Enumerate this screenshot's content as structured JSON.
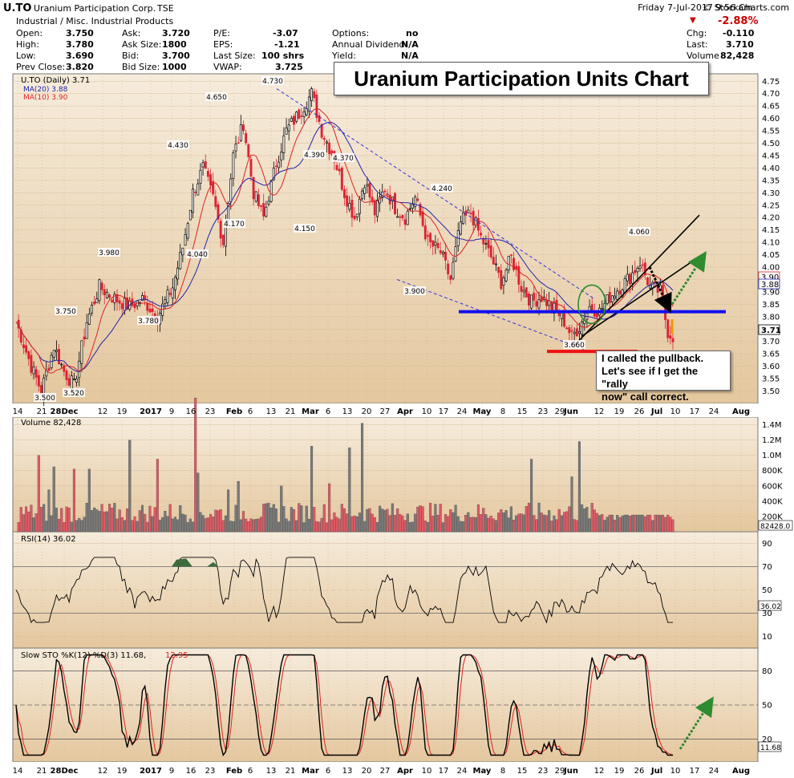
{
  "header": {
    "symbol": "U.TO",
    "company": "Uranium Participation Corp.",
    "exchange": "TSE",
    "sector": "Industrial / Misc. Industrial Products",
    "datetime": "Friday  7-Jul-2017  9:56 am",
    "copyright": "© StockCharts.com",
    "change_pct": "-2.88%",
    "quote": [
      {
        "label": "Open:",
        "value": "3.750"
      },
      {
        "label": "High:",
        "value": "3.780"
      },
      {
        "label": "Low:",
        "value": "3.690"
      },
      {
        "label": "Prev Close:",
        "value": "3.820"
      },
      {
        "label": "Ask:",
        "value": "3.720"
      },
      {
        "label": "Ask Size:",
        "value": "1800"
      },
      {
        "label": "Bid:",
        "value": "3.700"
      },
      {
        "label": "Bid Size:",
        "value": "1000"
      },
      {
        "label": "P/E:",
        "value": "-3.07"
      },
      {
        "label": "EPS:",
        "value": "-1.21"
      },
      {
        "label": "Last Size:",
        "value": "100 shrs"
      },
      {
        "label": "VWAP:",
        "value": "3.725"
      },
      {
        "label": "Options:",
        "value": "no"
      },
      {
        "label": "Annual Dividend:",
        "value": "N/A"
      },
      {
        "label": "Yield:",
        "value": "N/A"
      },
      {
        "label": "Chg:",
        "value": "-0.110"
      },
      {
        "label": "Last:",
        "value": "3.710"
      },
      {
        "label": "Volume:",
        "value": "82,428"
      }
    ]
  },
  "annotations": {
    "title": "Uranium Participation Units Chart",
    "callout_lines": [
      "I called the pullback.",
      "Let's see if I get the \"rally",
      "now\" call correct."
    ],
    "arrow_colors": {
      "black": "#000000",
      "green": "#2e8b2e",
      "blue": "#1010ee",
      "red": "#ee1111"
    }
  },
  "chart_data": [
    {
      "type": "line",
      "panel": "price",
      "legend": [
        "U.TO (Daily) 3.71",
        "MA(20) 3.88",
        "MA(10) 3.90"
      ],
      "series_colors": {
        "candle_up": "#000000",
        "candle_down": "#dd2233",
        "ma20": "#2222aa",
        "ma10": "#dd2222"
      },
      "ylim": [
        3.45,
        4.78
      ],
      "y_ticks": [
        "4.75",
        "4.70",
        "4.65",
        "4.60",
        "4.55",
        "4.50",
        "4.45",
        "4.40",
        "4.35",
        "4.30",
        "4.25",
        "4.20",
        "4.15",
        "4.10",
        "4.05",
        "4.00",
        "3.95",
        "3.90",
        "3.85",
        "3.80",
        "3.75",
        "3.70",
        "3.65",
        "3.60",
        "3.55",
        "3.50"
      ],
      "last_badges": [
        "3.90",
        "3.88",
        "3.71"
      ],
      "peak_labels": [
        "4.730",
        "4.650",
        "4.430",
        "4.390",
        "4.370",
        "4.240",
        "4.170",
        "4.150",
        "4.060",
        "4.040",
        "3.980",
        "3.900",
        "3.780",
        "3.750",
        "3.520",
        "3.500",
        "3.660"
      ],
      "x_ticks": [
        "14",
        "21",
        "28Dec",
        "12",
        "19",
        "2017",
        "9",
        "16",
        "23",
        "Feb",
        "6",
        "13",
        "21",
        "Mar",
        "6",
        "13",
        "20",
        "27",
        "Apr",
        "10",
        "17",
        "24",
        "May",
        "8",
        "15",
        "23",
        "29",
        "Jun",
        "12",
        "19",
        "26",
        "Jul",
        "10",
        "17",
        "24",
        "Aug"
      ],
      "support_line": 3.82,
      "low_line": 3.66
    },
    {
      "type": "bar",
      "panel": "volume",
      "legend": "Volume 82,428",
      "badge": "82428.0",
      "y_ticks": [
        "1.4M",
        "1.2M",
        "1.0M",
        "800K",
        "600K",
        "400K",
        "200K"
      ],
      "ylim": [
        0,
        1500000
      ]
    },
    {
      "type": "line",
      "panel": "rsi",
      "legend": "RSI(14) 36.02",
      "badge": "36.02",
      "y_ticks": [
        "90",
        "70",
        "50",
        "30",
        "10"
      ],
      "ylim": [
        0,
        100
      ]
    },
    {
      "type": "line",
      "panel": "stochastic",
      "legend_prefix": "Slow STO %K(12) %D(3) 11.68,",
      "legend_d": "12.95",
      "badge": "11.68",
      "y_ticks": [
        "80",
        "50",
        "20"
      ],
      "ylim": [
        0,
        100
      ]
    }
  ]
}
